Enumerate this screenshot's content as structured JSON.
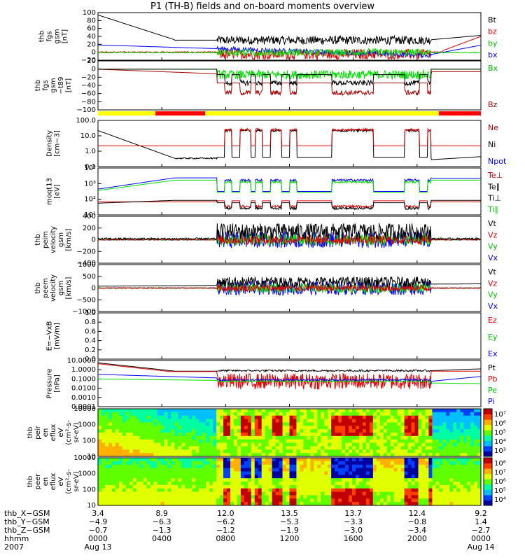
{
  "title": "P1 (TH-B) fields and on-board moments overview",
  "colors": {
    "black": "#000000",
    "red": "#e00000",
    "darkred": "#aa0000",
    "green": "#00e000",
    "blue": "#0000ff",
    "lightgreen": "#33ff33",
    "yellow": "#ffff00",
    "redbar": "#ff0000"
  },
  "chart_data": [
    {
      "type": "line",
      "id": "fgs",
      "ylabel": [
        "thb",
        "fgs",
        "gsm",
        "[nT]"
      ],
      "ylim": [
        -20,
        100
      ],
      "yticks": [
        "100",
        "80",
        "60",
        "40",
        "20",
        "0",
        "−20"
      ],
      "legend": [
        {
          "name": "Bt",
          "color": "#000000"
        },
        {
          "name": "bz",
          "color": "#e00000"
        },
        {
          "name": "by",
          "color": "#00c000"
        },
        {
          "name": "bx",
          "color": "#0000ff"
        }
      ]
    },
    {
      "type": "line",
      "id": "fgs_t89",
      "ylabel": [
        "thb",
        "fgs",
        "gsm",
        "−t89",
        "[nT]"
      ],
      "ylim": [
        -100,
        20
      ],
      "yticks": [
        "20",
        "0",
        "−20",
        "−40",
        "−60",
        "−80",
        "−100"
      ],
      "legend": [
        {
          "name": "Bx",
          "color": "#00c000"
        },
        {
          "name": "Bz",
          "color": "#aa0000"
        }
      ]
    },
    {
      "type": "line",
      "id": "density",
      "ylabel": [
        "Density",
        "[cm−3]"
      ],
      "ylim": [
        0.1,
        100
      ],
      "yticks": [
        "100.0",
        "10.0",
        "1.0",
        "0.1"
      ],
      "legend": [
        {
          "name": "Ne",
          "color": "#aa0000"
        },
        {
          "name": "Ni",
          "color": "#000000"
        },
        {
          "name": "Npot",
          "color": "#0000ff"
        }
      ]
    },
    {
      "type": "line",
      "id": "temp",
      "ylabel": [
        "moqt13",
        "[eV]"
      ],
      "ylim": [
        10,
        10000
      ],
      "yticks": [
        "10⁴",
        "10³",
        "10²",
        "10¹"
      ],
      "legend": [
        {
          "name": "Te⊥",
          "color": "#aa0000"
        },
        {
          "name": "Te∥",
          "color": "#000000"
        },
        {
          "name": "Ti⊥",
          "color": "#000000"
        },
        {
          "name": "Ti∥",
          "color": "#00c000"
        }
      ]
    },
    {
      "type": "line",
      "id": "peim_v",
      "ylabel": [
        "thb",
        "peim",
        "velocity",
        "gsm",
        "[km/s]"
      ],
      "ylim": [
        -400,
        400
      ],
      "yticks": [
        "400",
        "200",
        "0",
        "−200",
        "−400"
      ],
      "legend": [
        {
          "name": "Vt",
          "color": "#000000"
        },
        {
          "name": "Vz",
          "color": "#e00000"
        },
        {
          "name": "Vy",
          "color": "#00c000"
        },
        {
          "name": "Vx",
          "color": "#0000ff"
        }
      ]
    },
    {
      "type": "line",
      "id": "peem_v",
      "ylabel": [
        "thb",
        "peem",
        "velocity",
        "gsm",
        "[km/s]"
      ],
      "ylim": [
        -1000,
        1000
      ],
      "yticks": [
        "1000",
        "500",
        "0",
        "−500",
        "−1000"
      ],
      "legend": [
        {
          "name": "Vt",
          "color": "#000000"
        },
        {
          "name": "Vz",
          "color": "#e00000"
        },
        {
          "name": "Vy",
          "color": "#00c000"
        },
        {
          "name": "Vx",
          "color": "#0000ff"
        }
      ]
    },
    {
      "type": "line",
      "id": "efield",
      "ylabel": [
        "E=−VxB",
        "[mV/m]"
      ],
      "ylim": [
        0,
        1
      ],
      "yticks": [
        "1.0",
        "0.8",
        "0.6",
        "0.4",
        "0.2",
        "0.0"
      ],
      "legend": [
        {
          "name": "Ez",
          "color": "#e00000"
        },
        {
          "name": "Ey",
          "color": "#00c000"
        },
        {
          "name": "Ex",
          "color": "#0000ff"
        }
      ]
    },
    {
      "type": "line",
      "id": "pressure",
      "ylabel": [
        "Pressure",
        "[nPa]"
      ],
      "ylim": [
        0.0001,
        10
      ],
      "yticks": [
        "10.0000",
        "1.0000",
        "0.1000",
        "0.0100",
        "0.0010",
        "0.0001"
      ],
      "legend": [
        {
          "name": "Pt",
          "color": "#000000"
        },
        {
          "name": "Pb",
          "color": "#e00000"
        },
        {
          "name": "Pe",
          "color": "#00c000"
        },
        {
          "name": "Pi",
          "color": "#0000ff"
        }
      ]
    },
    {
      "type": "heatmap",
      "id": "peir_eflux",
      "ylabel": [
        "thb",
        "peir",
        "en",
        "eflux",
        "eV",
        "(cm²-s-",
        "sr-eV)"
      ],
      "yticks": [
        "10000",
        "1000",
        "100",
        "10"
      ],
      "colorbar_ticks": [
        "10⁷",
        "10⁶",
        "10⁵",
        "10⁴",
        "10³"
      ]
    },
    {
      "type": "heatmap",
      "id": "peer_eflux",
      "ylabel": [
        "thb",
        "peer",
        "en",
        "eflux",
        "eV",
        "(cm²-s-",
        "sr-eV)"
      ],
      "yticks": [
        "10000",
        "1000",
        "100",
        "10"
      ],
      "colorbar_ticks": [
        "10⁸",
        "10⁷",
        "10⁶",
        "10⁵",
        "10⁴"
      ]
    }
  ],
  "footer": {
    "rows": [
      {
        "name": "thb_X−GSM",
        "values": [
          "3.4",
          "8.9",
          "12.0",
          "13.5",
          "13.7",
          "12.4",
          "9.2"
        ]
      },
      {
        "name": "thb_Y−GSM",
        "values": [
          "−4.9",
          "−6.3",
          "−6.2",
          "−5.3",
          "−3.3",
          "−0.8",
          "1.4"
        ]
      },
      {
        "name": "thb_Z−GSM",
        "values": [
          "−0.7",
          "−1.3",
          "−1.2",
          "−1.9",
          "−3.0",
          "−3.4",
          "−2.7"
        ]
      },
      {
        "name": "hhmm",
        "values": [
          "0000",
          "0400",
          "0800",
          "1200",
          "1600",
          "2000",
          "0000"
        ]
      },
      {
        "name": "2007",
        "values": [
          "Aug 13",
          "",
          "",
          "",
          "",
          "",
          "Aug 14"
        ]
      }
    ]
  }
}
